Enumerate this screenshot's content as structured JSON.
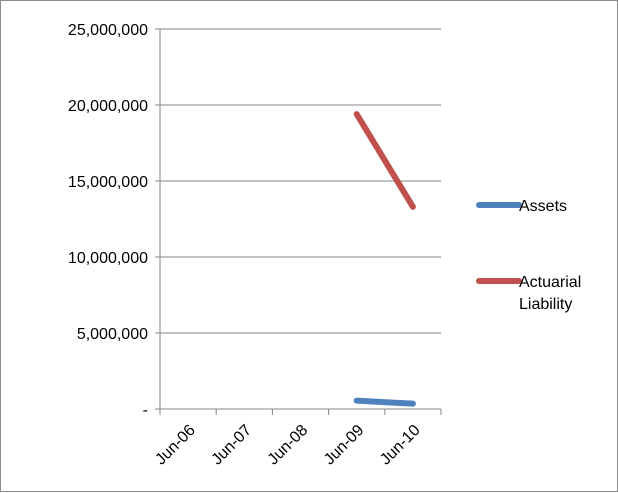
{
  "chart_data": {
    "type": "line",
    "title": "",
    "xlabel": "",
    "ylabel": "",
    "categories": [
      "Jun-06",
      "Jun-07",
      "Jun-08",
      "Jun-09",
      "Jun-10"
    ],
    "ylim": [
      0,
      25000000
    ],
    "y_ticks": [
      0,
      5000000,
      10000000,
      15000000,
      20000000,
      25000000
    ],
    "y_tick_labels": [
      "-",
      "5,000,000",
      "10,000,000",
      "15,000,000",
      "20,000,000",
      "25,000,000"
    ],
    "grid": "horizontal",
    "legend_position": "right",
    "series": [
      {
        "name": "Assets",
        "color": "#4f81bd",
        "values": [
          null,
          null,
          null,
          550000,
          350000
        ]
      },
      {
        "name": "Actuarial Liability",
        "color": "#c0504d",
        "values": [
          null,
          null,
          null,
          19400000,
          13300000
        ]
      }
    ]
  },
  "legend": {
    "items": [
      {
        "lines": [
          "Assets"
        ]
      },
      {
        "lines": [
          "Actuarial",
          "Liability"
        ]
      }
    ]
  }
}
